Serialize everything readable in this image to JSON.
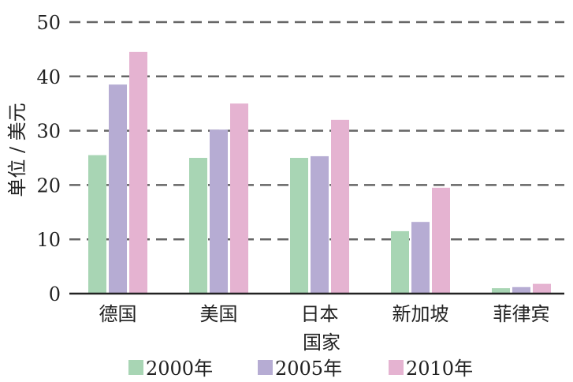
{
  "chart_data": {
    "type": "bar",
    "title": "",
    "xlabel": "国家",
    "ylabel": "单位 / 美元",
    "categories": [
      "德国",
      "美国",
      "日本",
      "新加坡",
      "菲律宾"
    ],
    "series": [
      {
        "name": "2000年",
        "color": "#a8d5b4",
        "values": [
          25.5,
          25.0,
          25.0,
          11.5,
          1.0
        ]
      },
      {
        "name": "2005年",
        "color": "#b6acd3",
        "values": [
          38.5,
          30.2,
          25.3,
          13.2,
          1.2
        ]
      },
      {
        "name": "2010年",
        "color": "#e5b3d1",
        "values": [
          44.5,
          35.0,
          32.0,
          19.5,
          1.8
        ]
      }
    ],
    "ylim": [
      0,
      50
    ],
    "yticks": [
      0,
      10,
      20,
      30,
      40,
      50
    ],
    "grid": true,
    "legend_position": "bottom"
  }
}
